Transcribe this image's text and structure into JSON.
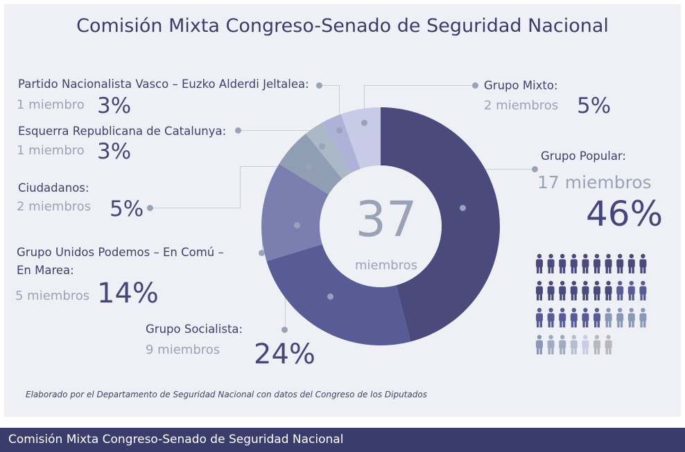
{
  "header": {
    "title": "Comisión Mixta Congreso-Senado de Seguridad Nacional"
  },
  "chart_data": {
    "type": "pie",
    "title": "Comisión Mixta Congreso-Senado de Seguridad Nacional",
    "total": {
      "value": "37",
      "label": "miembros"
    },
    "slices": [
      {
        "label": "Grupo Popular:",
        "members": 17,
        "members_text": "17 miembros",
        "percent_text": "46%",
        "color": "#4a4a7c"
      },
      {
        "label": "Grupo Socialista:",
        "members": 9,
        "members_text": "9 miembros",
        "percent_text": "24%",
        "color": "#585c96"
      },
      {
        "label": "Grupo Unidos Podemos – En Comú – En Marea:",
        "label_lines": [
          "Grupo Unidos Podemos – En Comú –",
          "En Marea:"
        ],
        "members": 5,
        "members_text": "5 miembros",
        "percent_text": "14%",
        "color": "#7a7fb0"
      },
      {
        "label": "Ciudadanos:",
        "members": 2,
        "members_text": "2 miembros",
        "percent_text": "5%",
        "color": "#909eb3"
      },
      {
        "label": "Esquerra Republicana de Catalunya:",
        "members": 1,
        "members_text": "1 miembro",
        "percent_text": "3%",
        "color": "#aab8c8"
      },
      {
        "label": "Partido Nacionalista Vasco – Euzko Alderdi Jeltalea:",
        "members": 1,
        "members_text": "1 miembro",
        "percent_text": "3%",
        "color": "#aeb2d8"
      },
      {
        "label": "Grupo Mixto:",
        "members": 2,
        "members_text": "2 miembros",
        "percent_text": "5%",
        "color": "#c8cbe5"
      }
    ]
  },
  "people_icons": {
    "total": 37,
    "per_row": 10,
    "groups": [
      {
        "count": 17,
        "color": "#4a4a7c"
      },
      {
        "count": 9,
        "color": "#585c96"
      },
      {
        "count": 5,
        "color": "#8a98b8"
      },
      {
        "count": 2,
        "color": "#a0aac0"
      },
      {
        "count": 1,
        "color": "#b4bed0"
      },
      {
        "count": 1,
        "color": "#c8cce6"
      },
      {
        "count": 2,
        "color": "#b8b8bc"
      }
    ]
  },
  "source_note": "Elaborado por el Departamento de Seguridad Nacional con datos del Congreso de los Diputados",
  "footer": {
    "caption": "Comisión Mixta Congreso-Senado de Seguridad Nacional"
  }
}
